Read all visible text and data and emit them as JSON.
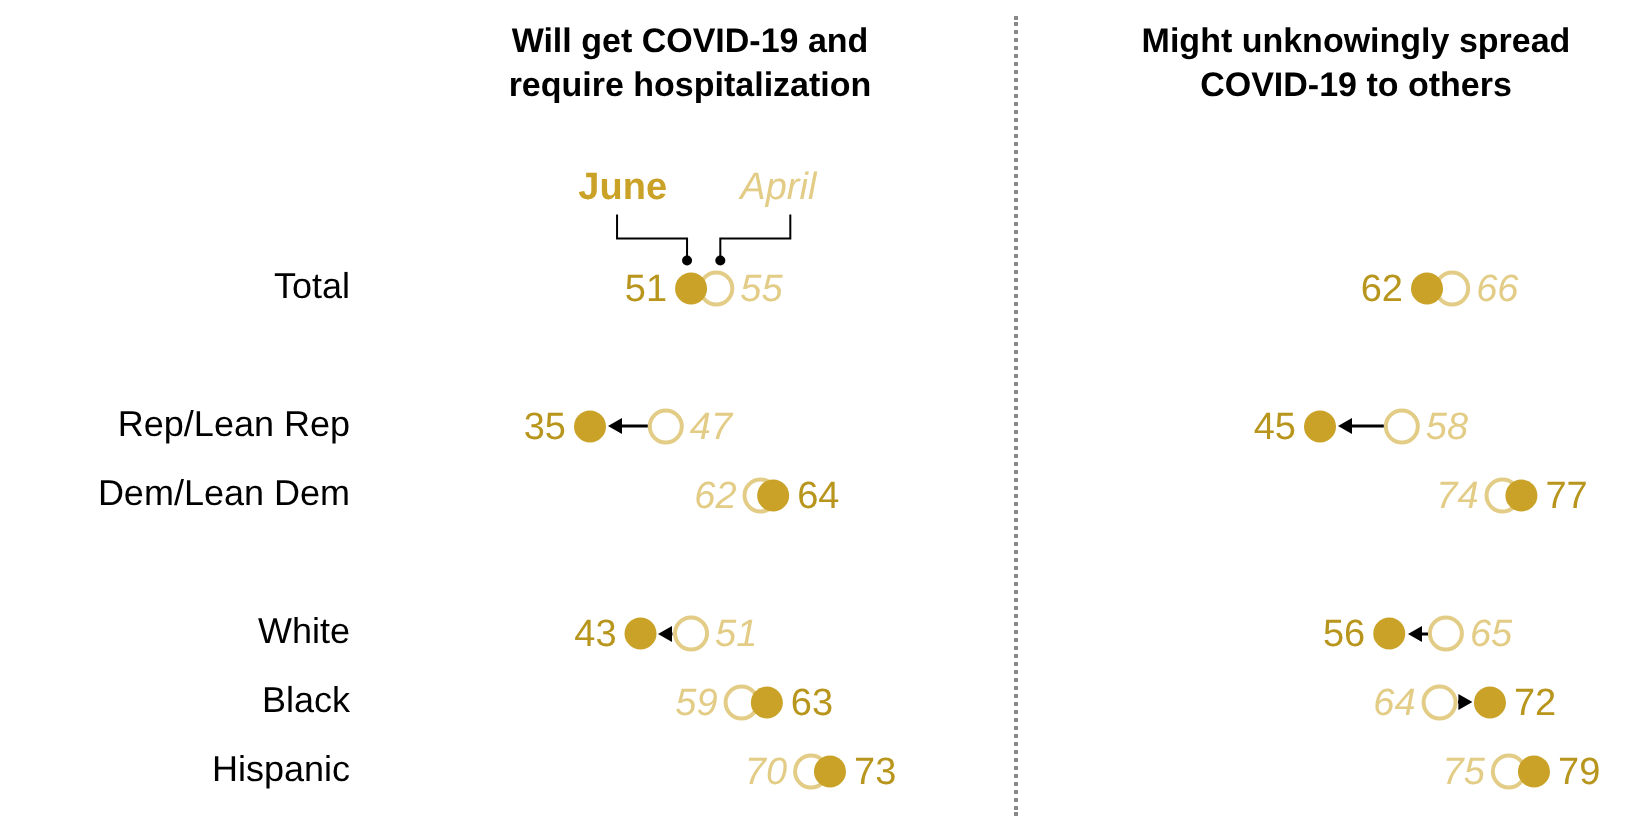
{
  "chart_data": [
    {
      "type": "scatter",
      "title": "Will get COVID-19 and require hospitalization",
      "categories": [
        "Total",
        null,
        "Rep/Lean Rep",
        "Dem/Lean Dem",
        null,
        "White",
        "Black",
        "Hispanic"
      ],
      "series": [
        {
          "name": "June",
          "color": "#c9a227",
          "values": [
            51,
            null,
            35,
            64,
            null,
            43,
            63,
            73
          ]
        },
        {
          "name": "April",
          "color": "#e2cc86",
          "values": [
            55,
            null,
            47,
            62,
            null,
            51,
            59,
            70
          ]
        }
      ],
      "orientation": "horizontal",
      "tick_labels": "y",
      "data_labels": true,
      "marker": "circle"
    },
    {
      "type": "scatter",
      "title": "Might unknowingly spread COVID-19 to others",
      "categories": [
        null,
        null,
        null,
        null,
        null,
        null,
        null,
        null
      ],
      "series": [
        {
          "color": "#c9a227",
          "values": [
            62,
            null,
            45,
            77,
            null,
            56,
            72,
            79
          ]
        },
        {
          "color": "#e2cc86",
          "values": [
            66,
            null,
            58,
            74,
            null,
            65,
            64,
            75
          ]
        }
      ],
      "orientation": "horizontal",
      "tick_labels": false,
      "data_labels": true,
      "marker": "circle"
    }
  ]
}
